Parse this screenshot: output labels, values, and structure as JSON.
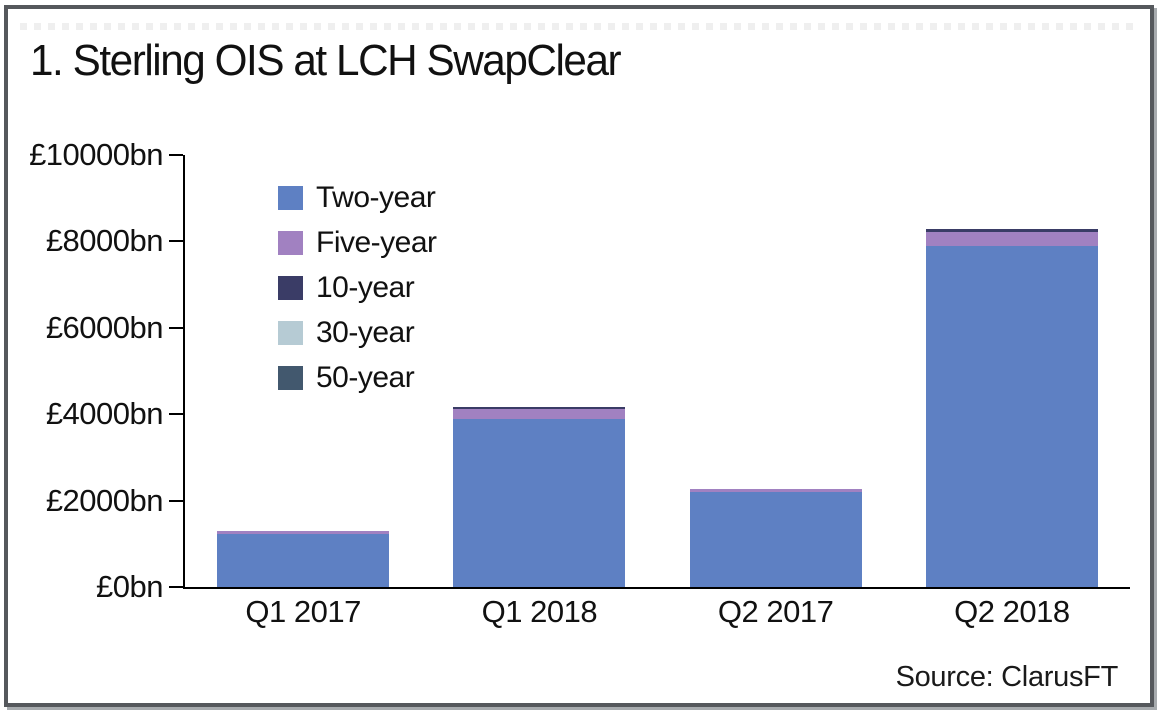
{
  "title": "1. Sterling OIS at LCH SwapClear",
  "source": "Source: ClarusFT",
  "colors": {
    "frame_border": "#55585c",
    "frame_shadow": "#a7abae",
    "axis": "#000000",
    "text": "#111111",
    "two_year": "#5e80c3",
    "five_year": "#a181c1",
    "ten_year": "#3a3c66",
    "thirty_year": "#b6cbd4",
    "fifty_year": "#42586e"
  },
  "chart_data": {
    "type": "bar",
    "stacked": true,
    "title": "1. Sterling OIS at LCH SwapClear",
    "categories": [
      "Q1 2017",
      "Q1 2018",
      "Q2 2017",
      "Q2 2018"
    ],
    "series": [
      {
        "name": "Two-year",
        "color": "#5e80c3",
        "values": [
          1230,
          3900,
          2210,
          7890
        ]
      },
      {
        "name": "Five-year",
        "color": "#a181c1",
        "values": [
          60,
          230,
          70,
          320
        ]
      },
      {
        "name": "10-year",
        "color": "#3a3c66",
        "values": [
          0,
          50,
          0,
          70
        ]
      },
      {
        "name": "30-year",
        "color": "#b6cbd4",
        "values": [
          0,
          0,
          0,
          0
        ]
      },
      {
        "name": "50-year",
        "color": "#42586e",
        "values": [
          0,
          0,
          0,
          0
        ]
      }
    ],
    "totals": [
      1290,
      4180,
      2280,
      8280
    ],
    "unit": "£bn",
    "ylim": [
      0,
      10000
    ],
    "yticks": [
      0,
      2000,
      4000,
      6000,
      8000,
      10000
    ],
    "ytick_labels": [
      "£0bn",
      "£2000bn",
      "£4000bn",
      "£6000bn",
      "£8000bn",
      "£10000bn"
    ],
    "xlabel": "",
    "ylabel": "",
    "grid": false,
    "legend_position": "upper-left-inside"
  }
}
